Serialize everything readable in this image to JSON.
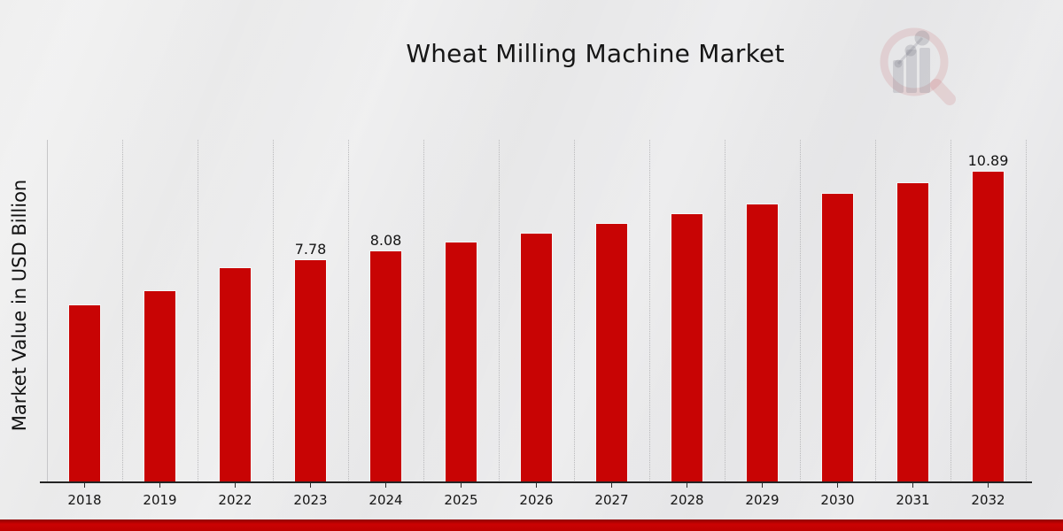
{
  "page": {
    "background_color": "#e9e9ea",
    "bottom_band_color": "#c00000",
    "watermark_icon": "magnifier-bar-chart-logo"
  },
  "chart_data": {
    "type": "bar",
    "title": "Wheat Milling Machine Market",
    "xlabel": "",
    "ylabel": "Market Value in USD Billion",
    "categories": [
      "2018",
      "2019",
      "2022",
      "2023",
      "2024",
      "2025",
      "2026",
      "2027",
      "2028",
      "2029",
      "2030",
      "2031",
      "2032"
    ],
    "values": [
      6.19,
      6.69,
      7.49,
      7.78,
      8.08,
      8.39,
      8.71,
      9.04,
      9.38,
      9.74,
      10.11,
      10.49,
      10.89
    ],
    "bar_labels": {
      "2023": "7.78",
      "2024": "8.08",
      "2032": "10.89"
    },
    "bar_color": "#c80404",
    "ylim": [
      0,
      12
    ],
    "grid": "vertical dotted lines between categories",
    "legend": "none",
    "axis_color": "#242424"
  }
}
